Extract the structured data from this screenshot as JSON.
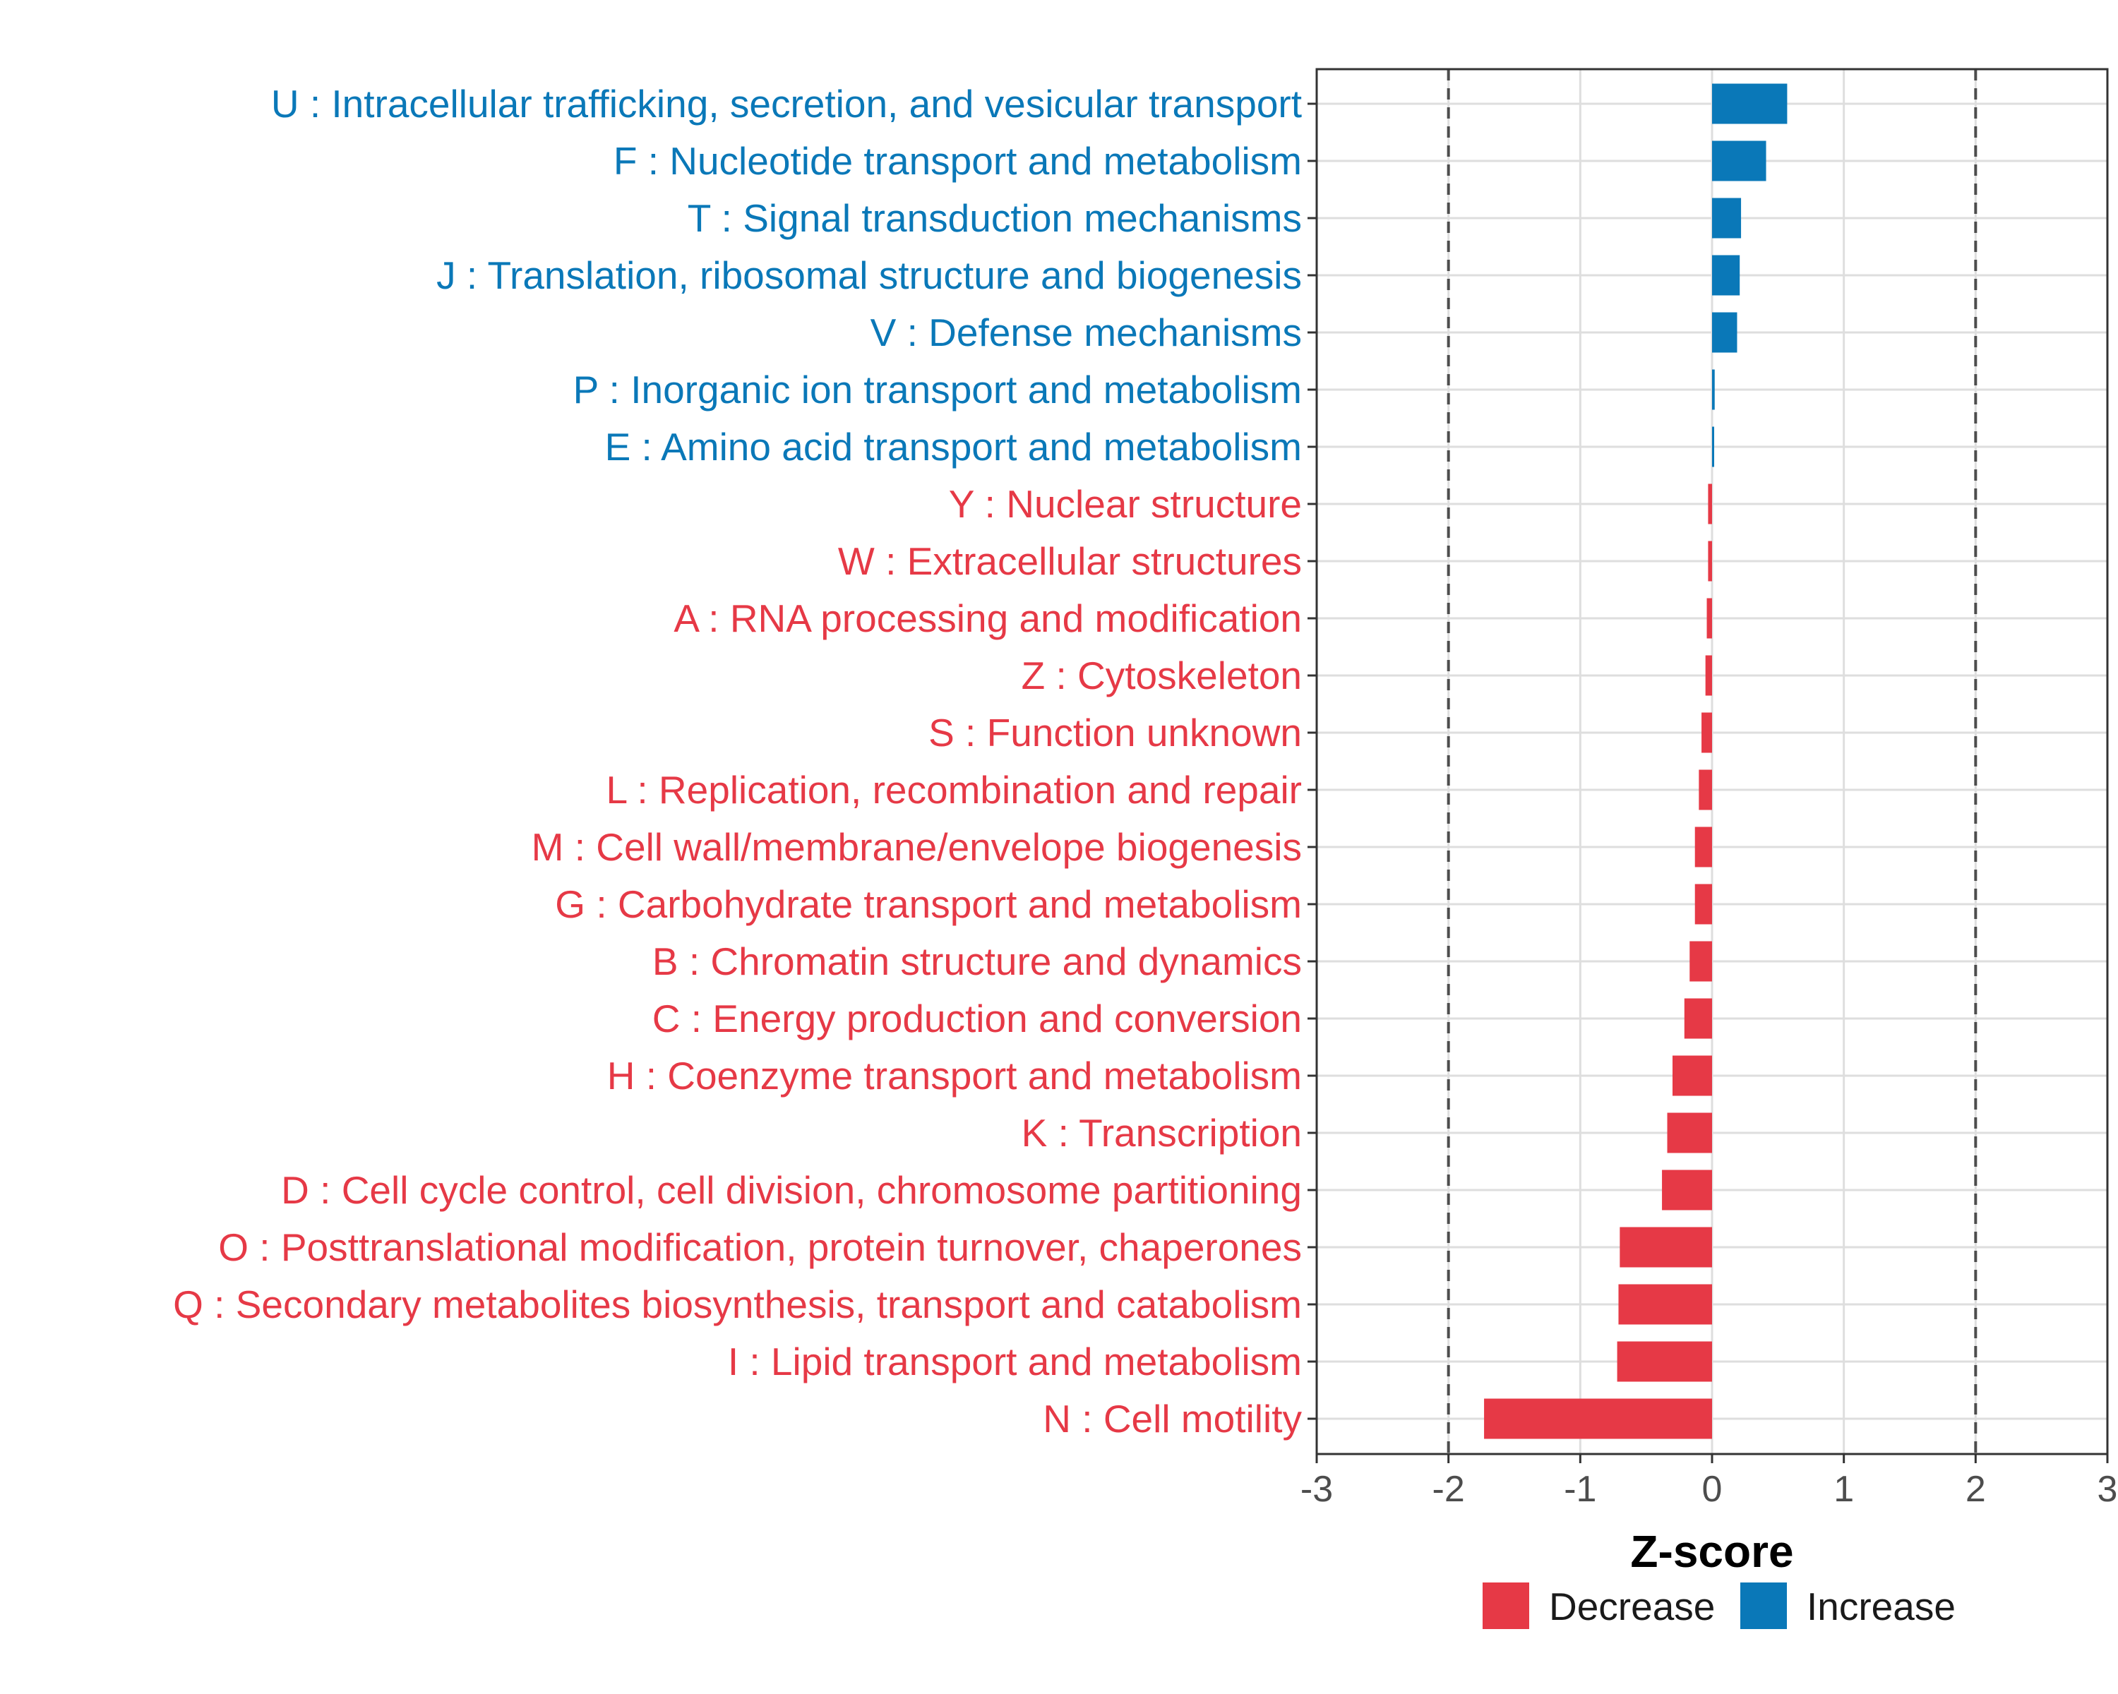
{
  "chart_data": {
    "type": "bar",
    "orientation": "horizontal",
    "xlabel": "Z-score",
    "xlim": [
      -3,
      3
    ],
    "xticks": [
      -3,
      -2,
      -1,
      0,
      1,
      2,
      3
    ],
    "threshold_lines": [
      -2,
      2
    ],
    "colors": {
      "Decrease": "#e63946",
      "Increase": "#0a78b8"
    },
    "legend": {
      "placement": "bottom",
      "entries": [
        "Decrease",
        "Increase"
      ]
    },
    "categories": [
      "U : Intracellular trafficking, secretion, and vesicular transport",
      "F : Nucleotide transport and metabolism",
      "T : Signal transduction mechanisms",
      "J : Translation, ribosomal structure and biogenesis",
      "V : Defense mechanisms",
      "P : Inorganic ion transport and metabolism",
      "E : Amino acid transport and metabolism",
      "Y : Nuclear structure",
      "W : Extracellular structures",
      "A : RNA processing and modification",
      "Z : Cytoskeleton",
      "S : Function unknown",
      "L : Replication, recombination and repair",
      "M : Cell wall/membrane/envelope biogenesis",
      "G : Carbohydrate transport and metabolism",
      "B : Chromatin structure and dynamics",
      "C : Energy production and conversion",
      "H : Coenzyme transport and metabolism",
      "K : Transcription",
      "D : Cell cycle control, cell division, chromosome partitioning",
      "O : Posttranslational modification, protein turnover, chaperones",
      "Q : Secondary metabolites biosynthesis, transport and catabolism",
      "I : Lipid transport and metabolism",
      "N : Cell motility"
    ],
    "values": [
      0.57,
      0.41,
      0.22,
      0.21,
      0.19,
      0.02,
      0.01,
      -0.03,
      -0.03,
      -0.04,
      -0.05,
      -0.08,
      -0.1,
      -0.13,
      -0.13,
      -0.17,
      -0.21,
      -0.3,
      -0.34,
      -0.38,
      -0.7,
      -0.71,
      -0.72,
      -1.73
    ],
    "directions": [
      "Increase",
      "Increase",
      "Increase",
      "Increase",
      "Increase",
      "Increase",
      "Increase",
      "Decrease",
      "Decrease",
      "Decrease",
      "Decrease",
      "Decrease",
      "Decrease",
      "Decrease",
      "Decrease",
      "Decrease",
      "Decrease",
      "Decrease",
      "Decrease",
      "Decrease",
      "Decrease",
      "Decrease",
      "Decrease",
      "Decrease"
    ]
  }
}
